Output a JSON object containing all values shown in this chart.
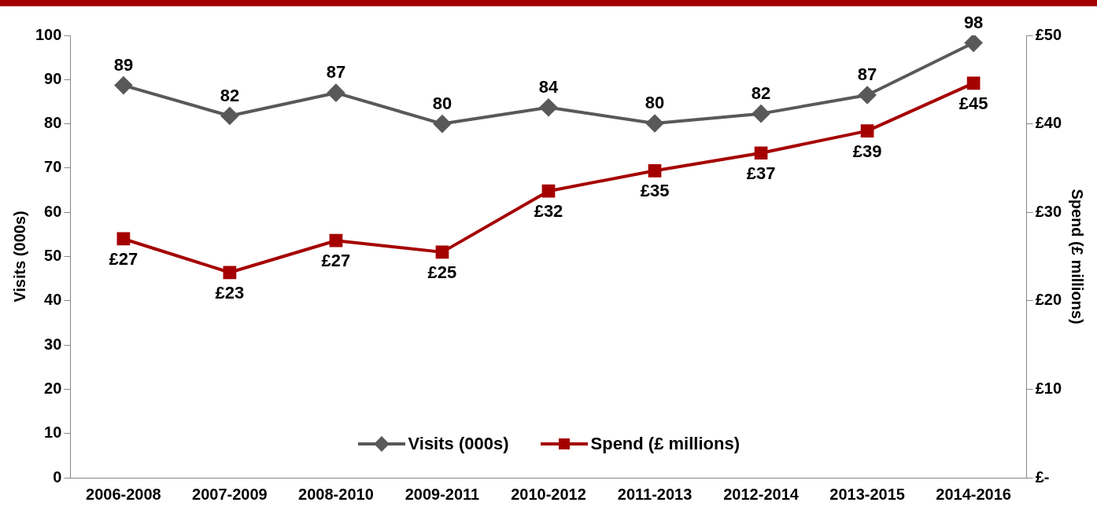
{
  "chart_data": {
    "type": "line",
    "xlabel": null,
    "ylabel": "Visits (000s)",
    "y2label": "Spend (£ millions)",
    "categories": [
      "2006-2008",
      "2007-2009",
      "2008-2010",
      "2009-2011",
      "2010-2012",
      "2011-2013",
      "2012-2014",
      "2013-2015",
      "2014-2016"
    ],
    "series": [
      {
        "name": "Visits (000s)",
        "color": "#595959",
        "marker": "diamond",
        "values": [
          88.7,
          81.8,
          87.0,
          80.0,
          83.7,
          80.1,
          82.3,
          86.5,
          98.3
        ],
        "value_labels": [
          "89",
          "82",
          "87",
          "80",
          "84",
          "80",
          "82",
          "87",
          "98"
        ]
      },
      {
        "name": "Spend (£ millions)",
        "color": "#a50000",
        "marker": "square",
        "axis": "y2",
        "values": [
          27.0,
          23.2,
          26.8,
          25.5,
          32.4,
          34.7,
          36.7,
          39.2,
          44.6
        ],
        "value_labels": [
          "£27",
          "£23",
          "£27",
          "£25",
          "£32",
          "£35",
          "£37",
          "£39",
          "£45"
        ]
      }
    ],
    "ylim": [
      0,
      100
    ],
    "yticks": [
      0,
      10,
      20,
      30,
      40,
      50,
      60,
      70,
      80,
      90,
      100
    ],
    "y2lim": [
      0,
      50
    ],
    "y2ticks": [
      {
        "value": 0,
        "label": "£-"
      },
      {
        "value": 10,
        "label": "£10"
      },
      {
        "value": 20,
        "label": "£20"
      },
      {
        "value": 30,
        "label": "£30"
      },
      {
        "value": 40,
        "label": "£40"
      },
      {
        "value": 50,
        "label": "£50"
      }
    ],
    "grid": false,
    "legend": "bottom",
    "line_style": "solid"
  }
}
